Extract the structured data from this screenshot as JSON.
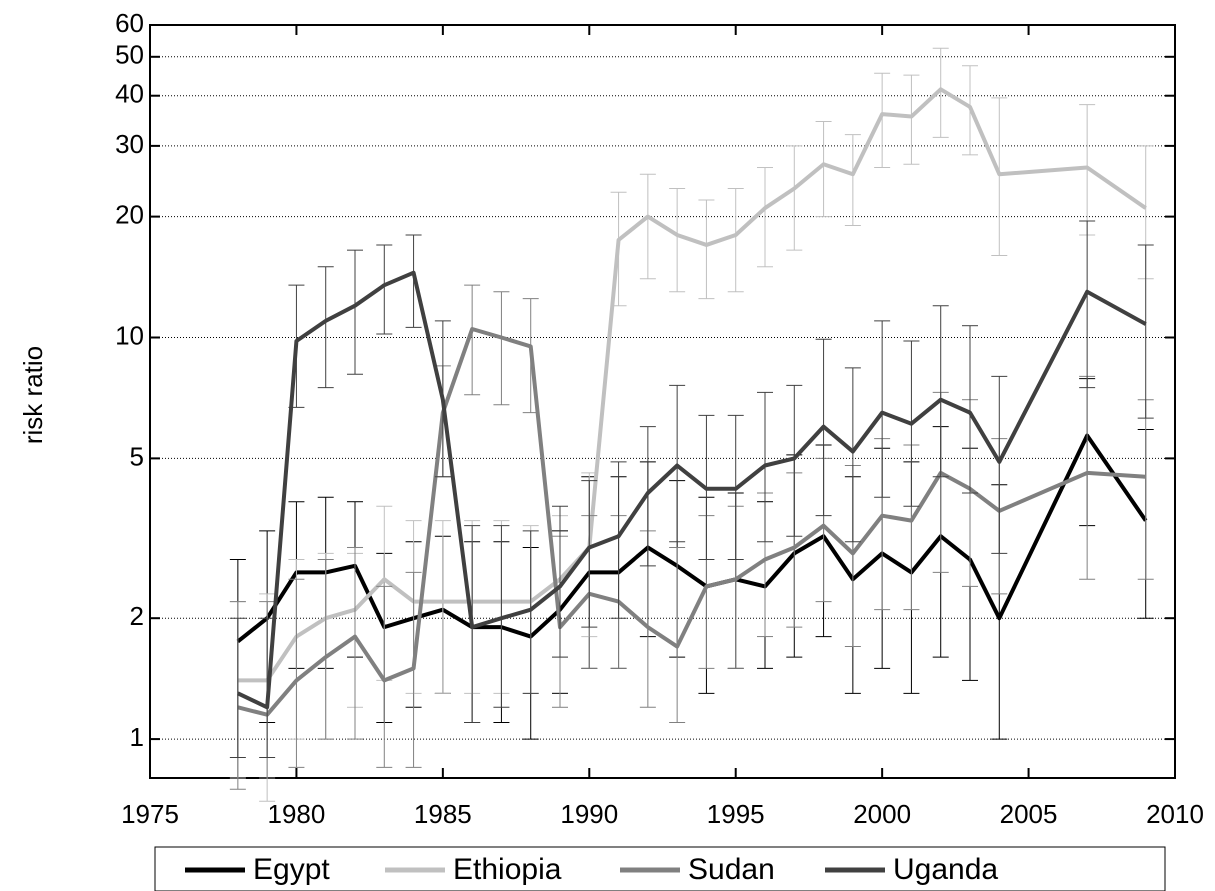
{
  "chart_data": {
    "type": "line",
    "y_label": "risk ratio",
    "yscale": "log",
    "grid": true,
    "x": [
      1978,
      1979,
      1980,
      1981,
      1982,
      1983,
      1984,
      1985,
      1986,
      1987,
      1988,
      1989,
      1990,
      1991,
      1992,
      1993,
      1994,
      1995,
      1996,
      1997,
      1998,
      1999,
      2000,
      2001,
      2002,
      2003,
      2004,
      2007,
      2009
    ],
    "xlim": [
      1975,
      2010
    ],
    "xticks": [
      1975,
      1980,
      1985,
      1990,
      1995,
      2000,
      2005,
      2010
    ],
    "ylim": [
      0.8,
      60
    ],
    "yticks": [
      1,
      2,
      5,
      10,
      20,
      30,
      40,
      50,
      60
    ],
    "series": [
      {
        "name": "Egypt",
        "color": "#000000",
        "values": [
          1.75,
          2.0,
          2.6,
          2.6,
          2.7,
          1.9,
          2.0,
          2.1,
          1.9,
          1.9,
          1.8,
          2.1,
          2.6,
          2.6,
          3.0,
          2.7,
          2.4,
          2.5,
          2.4,
          2.9,
          3.2,
          2.5,
          2.9,
          2.6,
          3.2,
          2.8,
          2.0,
          5.7,
          3.5
        ],
        "lower": [
          0.8,
          1.1,
          1.5,
          1.5,
          1.6,
          1.1,
          1.2,
          1.3,
          1.1,
          1.1,
          1.0,
          1.3,
          1.5,
          1.5,
          1.8,
          1.6,
          1.3,
          1.5,
          1.5,
          1.6,
          1.8,
          1.3,
          1.5,
          1.3,
          1.6,
          1.4,
          1.0,
          3.4,
          2.0
        ],
        "upper": [
          2.8,
          3.3,
          3.9,
          4.0,
          3.9,
          2.9,
          3.1,
          3.2,
          3.1,
          3.1,
          3.0,
          3.3,
          4.5,
          4.5,
          4.9,
          4.4,
          4.0,
          4.1,
          3.9,
          5.1,
          5.4,
          4.5,
          5.3,
          4.9,
          6.0,
          5.3,
          4.3,
          7.9,
          5.9
        ]
      },
      {
        "name": "Ethiopia",
        "color": "#c0c0c0",
        "values": [
          1.4,
          1.4,
          1.8,
          2.0,
          2.1,
          2.5,
          2.2,
          2.2,
          2.2,
          2.2,
          2.2,
          2.5,
          3.0,
          17.5,
          20,
          18,
          17,
          18,
          21,
          23.5,
          27,
          25.5,
          36,
          35.5,
          41.5,
          37.5,
          25.5,
          26.5,
          21
        ],
        "lower": [
          0.8,
          0.7,
          1.0,
          1.0,
          1.2,
          1.4,
          1.3,
          1.3,
          1.3,
          1.3,
          1.3,
          1.6,
          1.8,
          12,
          14,
          13,
          12.5,
          13,
          15,
          16.5,
          20,
          19,
          26.5,
          27,
          31.5,
          28.5,
          16,
          18,
          14
        ],
        "upper": [
          2.2,
          2.3,
          2.8,
          2.9,
          2.9,
          3.8,
          3.5,
          3.5,
          3.5,
          3.5,
          3.4,
          3.6,
          4.6,
          23,
          25.5,
          23.5,
          22,
          23.5,
          26.5,
          30,
          34.5,
          32,
          45.5,
          45,
          52.5,
          47.5,
          39.5,
          38,
          30
        ]
      },
      {
        "name": "Sudan",
        "color": "#808080",
        "values": [
          1.2,
          1.15,
          1.4,
          1.6,
          1.8,
          1.4,
          1.5,
          6.5,
          10.5,
          10,
          9.5,
          1.9,
          2.3,
          2.2,
          1.9,
          1.7,
          2.4,
          2.5,
          2.8,
          3.0,
          3.4,
          2.9,
          3.6,
          3.5,
          4.6,
          4.2,
          3.7,
          4.6,
          4.5
        ],
        "lower": [
          0.75,
          0.8,
          0.85,
          1.0,
          1.0,
          0.85,
          0.85,
          4.5,
          7.2,
          6.8,
          6.5,
          1.2,
          1.5,
          1.5,
          1.2,
          1.1,
          1.5,
          1.5,
          1.8,
          1.9,
          2.2,
          1.7,
          2.1,
          2.1,
          2.6,
          2.4,
          2.3,
          2.5,
          2.5
        ],
        "upper": [
          2.2,
          2.2,
          2.5,
          2.8,
          3.0,
          2.4,
          2.6,
          8.5,
          13.5,
          13,
          12.5,
          3.2,
          3.6,
          3.6,
          3.3,
          3.0,
          3.6,
          3.8,
          4.1,
          4.6,
          5.0,
          4.8,
          5.6,
          5.4,
          7.3,
          7.0,
          5.6,
          8.0,
          7.0
        ]
      },
      {
        "name": "Uganda",
        "color": "#404040",
        "values": [
          1.3,
          1.2,
          9.8,
          11,
          12,
          13.5,
          14.5,
          7,
          1.9,
          2.0,
          2.1,
          2.4,
          3.0,
          3.2,
          4.1,
          4.8,
          4.2,
          4.2,
          4.8,
          5.0,
          6.0,
          5.2,
          6.5,
          6.1,
          7.0,
          6.5,
          4.9,
          13,
          10.8
        ],
        "lower": [
          0.9,
          0.9,
          6.7,
          7.5,
          8.1,
          10.2,
          10.6,
          4.5,
          1.1,
          1.2,
          1.3,
          1.6,
          1.9,
          2.0,
          2.7,
          3.1,
          2.8,
          2.8,
          3.1,
          3.2,
          3.6,
          3.1,
          4.0,
          3.8,
          4.5,
          4.1,
          2.9,
          7.5,
          6.3
        ],
        "upper": [
          2.0,
          2.0,
          13.5,
          15,
          16.5,
          17,
          18,
          11,
          3.4,
          3.4,
          3.3,
          3.8,
          4.4,
          4.9,
          6.0,
          7.6,
          6.4,
          6.4,
          7.3,
          7.6,
          9.9,
          8.4,
          11,
          9.8,
          12,
          10.7,
          8.0,
          19.5,
          17
        ]
      }
    ]
  }
}
